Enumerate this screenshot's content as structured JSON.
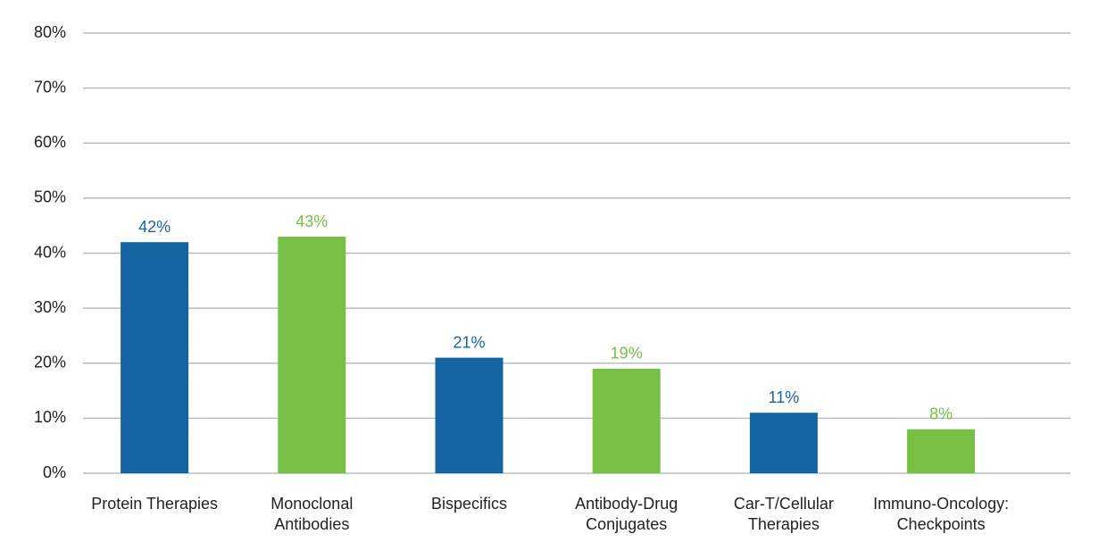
{
  "chart_data": {
    "type": "bar",
    "categories": [
      "Protein Therapies",
      "Monoclonal Antibodies",
      "Bispecifics",
      "Antibody-Drug Conjugates",
      "Car-T/Cellular Therapies",
      "Immuno-Oncology: Checkpoints"
    ],
    "values": [
      42,
      43,
      21,
      19,
      11,
      8
    ],
    "value_labels": [
      "42%",
      "43%",
      "21%",
      "19%",
      "11%",
      "8%"
    ],
    "colors": [
      "#1565a3",
      "#77bf45",
      "#1565a3",
      "#77bf45",
      "#1565a3",
      "#77bf45"
    ],
    "ylim": [
      0,
      80
    ],
    "yticks": [
      {
        "value": 0,
        "label": "0%"
      },
      {
        "value": 10,
        "label": "10%"
      },
      {
        "value": 20,
        "label": "20%"
      },
      {
        "value": 30,
        "label": "30%"
      },
      {
        "value": 40,
        "label": "40%"
      },
      {
        "value": 50,
        "label": "50%"
      },
      {
        "value": 60,
        "label": "60%"
      },
      {
        "value": 70,
        "label": "70%"
      },
      {
        "value": 80,
        "label": "80%"
      }
    ],
    "grid": true
  }
}
